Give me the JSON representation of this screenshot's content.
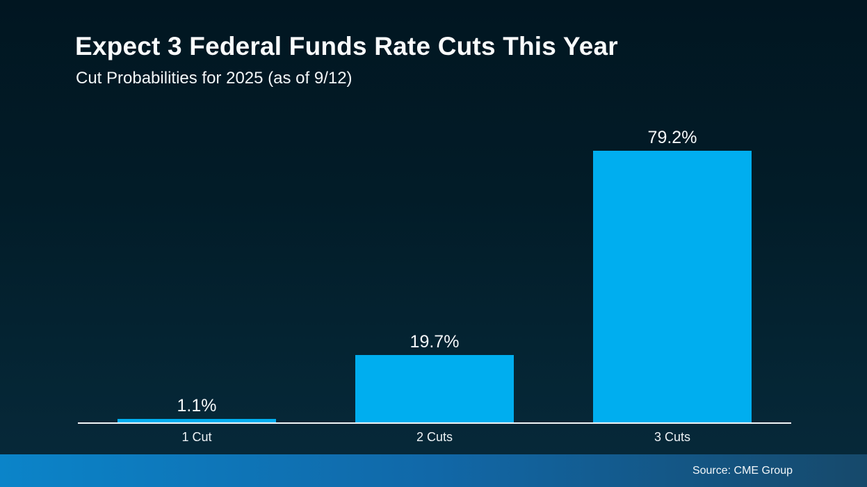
{
  "header": {
    "title": "Expect 3 Federal Funds Rate Cuts This Year",
    "subtitle": "Cut Probabilities for 2025 (as of 9/12)"
  },
  "chart_data": {
    "type": "bar",
    "title": "Expect 3 Federal Funds Rate Cuts This Year",
    "subtitle": "Cut Probabilities for 2025 (as of 9/12)",
    "categories": [
      "1 Cut",
      "2 Cuts",
      "3 Cuts"
    ],
    "values": [
      1.1,
      19.7,
      79.2
    ],
    "value_labels": [
      "1.1%",
      "19.7%",
      "79.2%"
    ],
    "xlabel": "",
    "ylabel": "",
    "ylim": [
      0,
      100
    ],
    "grid": false,
    "legend": "none",
    "bar_color": "#00AEEF",
    "axis_color": "#F3F6F8"
  },
  "footer": {
    "source": "Source: CME Group"
  },
  "colors": {
    "background_top": "#011621",
    "background_bottom": "#07293B",
    "bar": "#00AEEF",
    "axis": "#F3F6F8",
    "text": "#FFFFFF",
    "footer_gradient_left": "#0B84C9",
    "footer_gradient_mid": "#1168A8",
    "footer_gradient_right": "#16496B"
  }
}
